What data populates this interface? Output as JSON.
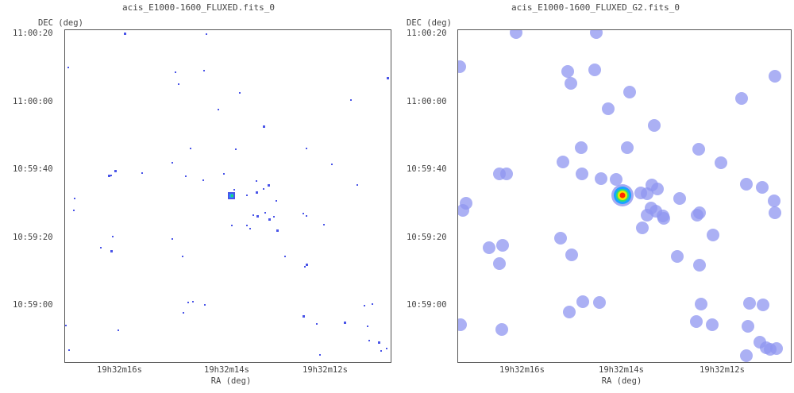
{
  "panels": [
    {
      "title": "acis_E1000-1600_FLUXED.fits_0",
      "ylabel": "DEC (deg)",
      "xlabel": "RA (deg)",
      "x_ticks": [
        "19h32m16s",
        "19h32m14s",
        "19h32m12s"
      ],
      "y_ticks": [
        "11:00:20",
        "11:00:00",
        "10:59:40",
        "10:59:20",
        "10:59:00"
      ]
    },
    {
      "title": "acis_E1000-1600_FLUXED_G2.fits_0",
      "ylabel": "DEC (deg)",
      "xlabel": "RA (deg)",
      "x_ticks": [
        "19h32m16s",
        "19h32m14s",
        "19h32m12s"
      ],
      "y_ticks": [
        "11:00:20",
        "11:00:00",
        "10:59:40",
        "10:59:20",
        "10:59:00"
      ]
    }
  ],
  "colors": {
    "photon": "#4a55e8",
    "smoothed": "#8f95f0",
    "source_core": "#ff2a00",
    "source_mid": "#f5e400",
    "source_outer": "#19a3ff"
  }
}
